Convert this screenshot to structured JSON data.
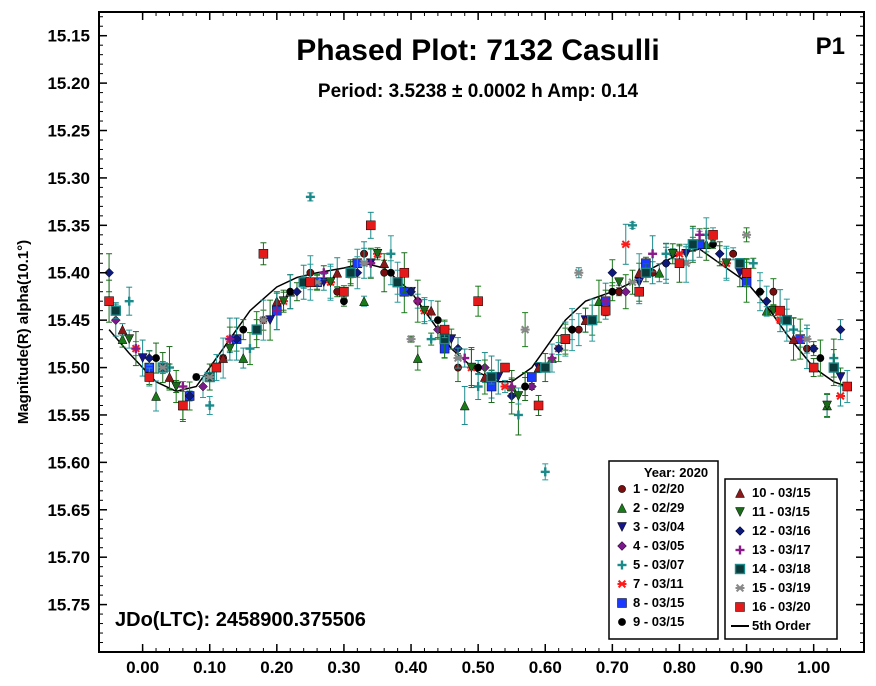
{
  "chart_data": {
    "type": "scatter",
    "title": "Phased Plot: 7132 Casulli",
    "subtitle": "Period: 3.5238 ± 0.0002 h  Amp: 0.14",
    "tag": "P1",
    "ylabel": "Magnitude(R) alpha(10.1°)",
    "xlabel": "",
    "xlim": [
      -0.065,
      1.075
    ],
    "ylim": [
      15.125,
      15.8
    ],
    "y_inverted": true,
    "xticks": [
      "0.00",
      "0.10",
      "0.20",
      "0.30",
      "0.40",
      "0.50",
      "0.60",
      "0.70",
      "0.80",
      "0.90",
      "1.00"
    ],
    "xtick_values": [
      0.0,
      0.1,
      0.2,
      0.3,
      0.4,
      0.5,
      0.6,
      0.7,
      0.8,
      0.9,
      1.0
    ],
    "yticks": [
      "15.15",
      "15.20",
      "15.25",
      "15.30",
      "15.35",
      "15.40",
      "15.45",
      "15.50",
      "15.55",
      "15.60",
      "15.65",
      "15.70",
      "15.75"
    ],
    "ytick_values": [
      15.15,
      15.2,
      15.25,
      15.3,
      15.35,
      15.4,
      15.45,
      15.5,
      15.55,
      15.6,
      15.65,
      15.7,
      15.75
    ],
    "annotation": "JDo(LTC): 2458900.375506",
    "grid": false,
    "legend_placement": "bottom-right",
    "legend_title": "Year: 2020",
    "fit": {
      "name": "5th Order",
      "phase": [
        -0.05,
        -0.02,
        0.0,
        0.02,
        0.05,
        0.08,
        0.1,
        0.13,
        0.16,
        0.2,
        0.23,
        0.26,
        0.3,
        0.33,
        0.36,
        0.4,
        0.43,
        0.46,
        0.5,
        0.53,
        0.55,
        0.58,
        0.6,
        0.63,
        0.66,
        0.7,
        0.73,
        0.76,
        0.8,
        0.83,
        0.86,
        0.9,
        0.93,
        0.96,
        1.0,
        1.03,
        1.05
      ],
      "mag": [
        15.46,
        15.485,
        15.5,
        15.515,
        15.525,
        15.52,
        15.5,
        15.47,
        15.44,
        15.415,
        15.405,
        15.4,
        15.395,
        15.39,
        15.395,
        15.42,
        15.45,
        15.48,
        15.505,
        15.515,
        15.515,
        15.5,
        15.48,
        15.45,
        15.43,
        15.42,
        15.41,
        15.395,
        15.38,
        15.375,
        15.39,
        15.41,
        15.435,
        15.465,
        15.5,
        15.515,
        15.52
      ]
    },
    "series": [
      {
        "name": "1 - 02/20",
        "marker": "circle",
        "color": "#7a0e0e",
        "x": [
          0.12,
          0.18,
          0.25,
          0.29,
          0.33,
          0.36,
          0.41,
          0.47,
          0.52,
          0.57,
          0.65,
          0.71,
          0.76,
          0.82,
          0.88,
          0.94,
          0.99
        ],
        "y": [
          15.49,
          15.45,
          15.4,
          15.42,
          15.38,
          15.4,
          15.43,
          15.5,
          15.51,
          15.52,
          15.46,
          15.42,
          15.4,
          15.37,
          15.38,
          15.42,
          15.48
        ]
      },
      {
        "name": "2 - 02/29",
        "marker": "triangle-up",
        "color": "#1a7a1a",
        "x": [
          -0.03,
          0.02,
          0.06,
          0.15,
          0.22,
          0.33,
          0.41,
          0.48,
          0.55,
          0.61,
          0.68,
          0.77,
          0.84,
          0.93,
          1.02
        ],
        "y": [
          15.47,
          15.53,
          15.54,
          15.49,
          15.42,
          15.43,
          15.49,
          15.54,
          15.52,
          15.49,
          15.43,
          15.4,
          15.37,
          15.44,
          15.54
        ]
      },
      {
        "name": "3 - 03/04",
        "marker": "triangle-down",
        "color": "#16168a",
        "x": [
          0.0,
          0.05,
          0.11,
          0.19,
          0.27,
          0.34,
          0.4,
          0.46,
          0.53,
          0.59,
          0.66,
          0.74,
          0.81,
          0.89,
          0.96,
          1.04
        ],
        "y": [
          15.49,
          15.52,
          15.5,
          15.45,
          15.41,
          15.39,
          15.42,
          15.47,
          15.51,
          15.5,
          15.45,
          15.41,
          15.38,
          15.4,
          15.45,
          15.51
        ]
      },
      {
        "name": "4 - 03/05",
        "marker": "diamond",
        "color": "#7a1a8a",
        "x": [
          -0.04,
          0.03,
          0.09,
          0.17,
          0.24,
          0.31,
          0.38,
          0.44,
          0.51,
          0.58,
          0.64,
          0.72,
          0.79,
          0.86,
          0.92,
          1.0
        ],
        "y": [
          15.45,
          15.5,
          15.52,
          15.46,
          15.41,
          15.4,
          15.41,
          15.46,
          15.5,
          15.52,
          15.46,
          15.42,
          15.38,
          15.38,
          15.42,
          15.48
        ]
      },
      {
        "name": "5 - 03/07",
        "marker": "plus",
        "color": "#1a8a8a",
        "x": [
          -0.02,
          0.04,
          0.1,
          0.16,
          0.25,
          0.31,
          0.37,
          0.43,
          0.5,
          0.56,
          0.6,
          0.67,
          0.73,
          0.78,
          0.84,
          0.91,
          0.97,
          1.03
        ],
        "y": [
          15.43,
          15.5,
          15.54,
          15.48,
          15.32,
          15.4,
          15.38,
          15.47,
          15.52,
          15.55,
          15.61,
          15.45,
          15.35,
          15.38,
          15.36,
          15.39,
          15.46,
          15.49
        ]
      },
      {
        "name": "7 - 03/11",
        "marker": "asterisk",
        "color": "#ff1a1a",
        "x": [
          -0.01,
          0.06,
          0.13,
          0.21,
          0.28,
          0.35,
          0.42,
          0.49,
          0.54,
          0.62,
          0.72,
          0.8,
          0.87,
          0.95,
          1.04
        ],
        "y": [
          15.48,
          15.54,
          15.47,
          15.43,
          15.41,
          15.38,
          15.44,
          15.5,
          15.52,
          15.48,
          15.37,
          15.38,
          15.39,
          15.45,
          15.53
        ]
      },
      {
        "name": "8 - 03/15",
        "marker": "square",
        "color": "#1a3aff",
        "x": [
          0.01,
          0.07,
          0.14,
          0.2,
          0.26,
          0.32,
          0.39,
          0.45,
          0.52,
          0.58,
          0.63,
          0.69,
          0.75,
          0.83,
          0.9,
          0.98
        ],
        "y": [
          15.5,
          15.53,
          15.47,
          15.44,
          15.41,
          15.39,
          15.42,
          15.48,
          15.52,
          15.51,
          15.47,
          15.43,
          15.39,
          15.37,
          15.41,
          15.47
        ]
      },
      {
        "name": "9 - 03/15",
        "marker": "circle",
        "color": "#000000",
        "x": [
          0.02,
          0.08,
          0.15,
          0.22,
          0.3,
          0.37,
          0.44,
          0.5,
          0.57,
          0.64,
          0.7,
          0.78,
          0.85,
          0.92,
          1.01
        ],
        "y": [
          15.49,
          15.51,
          15.46,
          15.42,
          15.43,
          15.4,
          15.45,
          15.5,
          15.52,
          15.46,
          15.42,
          15.39,
          15.37,
          15.42,
          15.49
        ]
      },
      {
        "name": "10 - 03/15",
        "marker": "triangle-up",
        "color": "#8a1a1a",
        "x": [
          -0.03,
          0.04,
          0.12,
          0.2,
          0.29,
          0.36,
          0.43,
          0.51,
          0.59,
          0.66,
          0.74,
          0.82,
          0.9,
          0.97
        ],
        "y": [
          15.46,
          15.51,
          15.49,
          15.43,
          15.4,
          15.39,
          15.44,
          15.51,
          15.5,
          15.45,
          15.4,
          15.37,
          15.4,
          15.47
        ]
      },
      {
        "name": "11 - 03/15",
        "marker": "triangle-down",
        "color": "#1a6a1a",
        "x": [
          -0.02,
          0.05,
          0.13,
          0.21,
          0.28,
          0.35,
          0.42,
          0.49,
          0.56,
          0.63,
          0.71,
          0.79,
          0.87,
          0.94,
          1.02
        ],
        "y": [
          15.47,
          15.52,
          15.48,
          15.43,
          15.41,
          15.38,
          15.44,
          15.5,
          15.53,
          15.47,
          15.41,
          15.38,
          15.39,
          15.44,
          15.54
        ]
      },
      {
        "name": "12 - 03/16",
        "marker": "diamond",
        "color": "#0e1a7a",
        "x": [
          -0.05,
          0.01,
          0.07,
          0.14,
          0.23,
          0.32,
          0.4,
          0.47,
          0.55,
          0.62,
          0.7,
          0.78,
          0.86,
          0.93,
          1.0,
          1.04
        ],
        "y": [
          15.4,
          15.49,
          15.53,
          15.47,
          15.42,
          15.4,
          15.42,
          15.48,
          15.53,
          15.48,
          15.4,
          15.39,
          15.38,
          15.43,
          15.48,
          15.46
        ]
      },
      {
        "name": "13 - 03/17",
        "marker": "plus",
        "color": "#8a1a8a",
        "x": [
          -0.01,
          0.06,
          0.13,
          0.2,
          0.27,
          0.34,
          0.41,
          0.48,
          0.55,
          0.61,
          0.69,
          0.76,
          0.83,
          0.9,
          0.98
        ],
        "y": [
          15.48,
          15.52,
          15.47,
          15.44,
          15.4,
          15.39,
          15.43,
          15.49,
          15.52,
          15.49,
          15.43,
          15.38,
          15.36,
          15.4,
          15.47
        ]
      },
      {
        "name": "14 - 03/18",
        "marker": "square-outline",
        "color": "#1a5a5a",
        "x": [
          -0.04,
          0.03,
          0.1,
          0.17,
          0.24,
          0.31,
          0.38,
          0.45,
          0.52,
          0.6,
          0.67,
          0.75,
          0.82,
          0.89,
          0.96,
          1.03
        ],
        "y": [
          15.44,
          15.5,
          15.51,
          15.46,
          15.41,
          15.4,
          15.41,
          15.47,
          15.51,
          15.5,
          15.45,
          15.4,
          15.37,
          15.39,
          15.45,
          15.5
        ]
      },
      {
        "name": "15 - 03/19",
        "marker": "asterisk",
        "color": "#888888",
        "x": [
          0.03,
          0.1,
          0.18,
          0.26,
          0.33,
          0.4,
          0.47,
          0.57,
          0.65,
          0.73,
          0.81,
          0.9,
          0.99
        ],
        "y": [
          15.5,
          15.51,
          15.45,
          15.41,
          15.39,
          15.47,
          15.49,
          15.46,
          15.4,
          15.41,
          15.39,
          15.36,
          15.47
        ]
      },
      {
        "name": "16 - 03/20",
        "marker": "square",
        "color": "#e41a1a",
        "x": [
          -0.05,
          0.01,
          0.06,
          0.11,
          0.18,
          0.25,
          0.3,
          0.34,
          0.39,
          0.45,
          0.5,
          0.54,
          0.59,
          0.63,
          0.69,
          0.74,
          0.8,
          0.85,
          0.9,
          0.95,
          1.0,
          1.05
        ],
        "y": [
          15.43,
          15.51,
          15.54,
          15.5,
          15.38,
          15.41,
          15.42,
          15.35,
          15.4,
          15.46,
          15.43,
          15.5,
          15.54,
          15.47,
          15.44,
          15.42,
          15.39,
          15.36,
          15.4,
          15.44,
          15.5,
          15.52
        ]
      }
    ]
  }
}
